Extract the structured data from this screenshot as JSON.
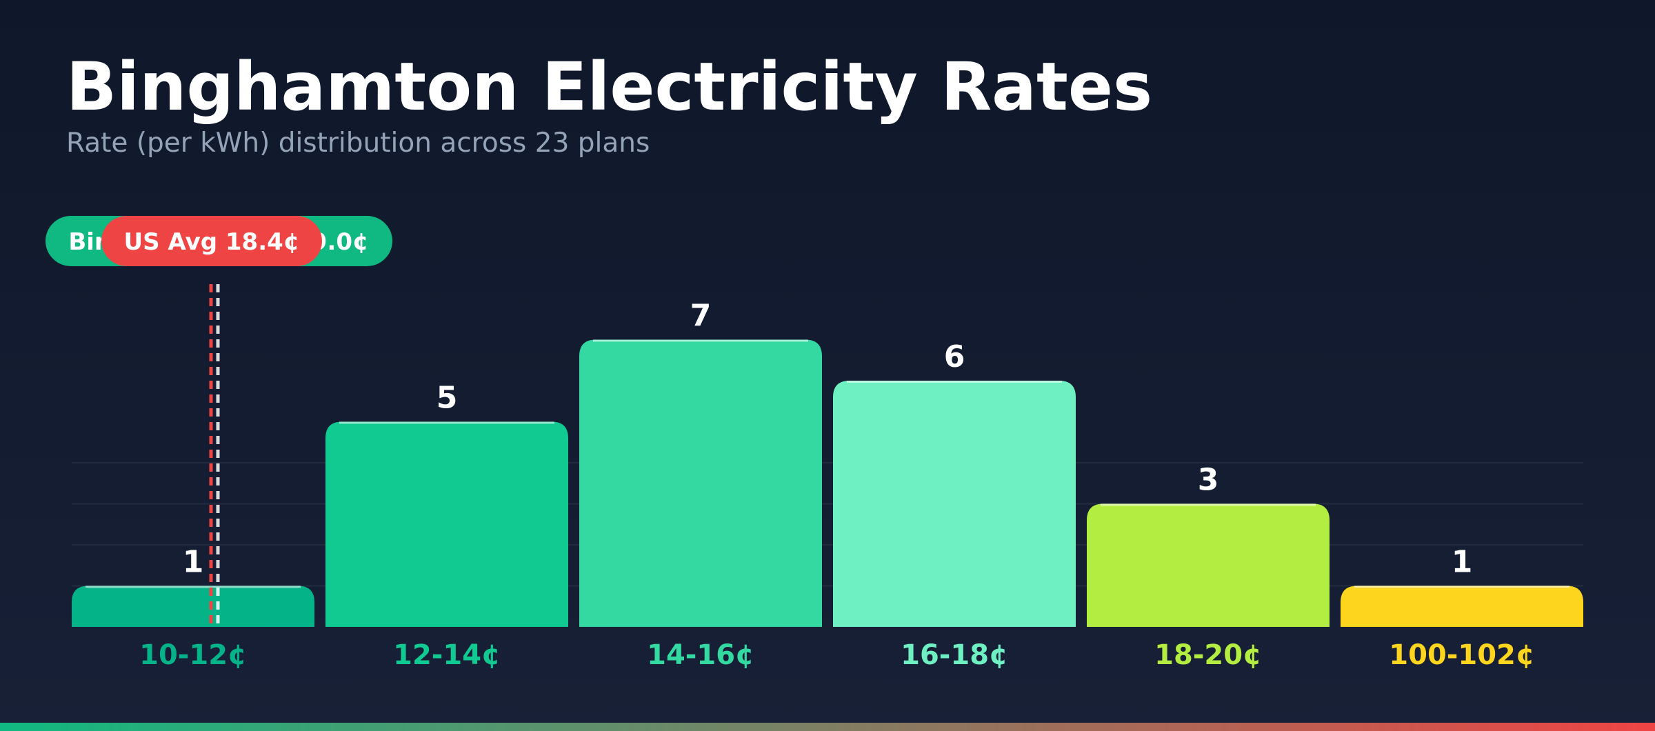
{
  "header": {
    "title": "Binghamton Electricity Rates",
    "subtitle": "Rate (per kWh) distribution across 23 plans"
  },
  "markers": {
    "binghamton": {
      "label": "Binghamton Avg 19.0¢",
      "value": 19.0,
      "color": "#10b981"
    },
    "us_avg": {
      "label": "US Avg 18.4¢",
      "value": 18.4,
      "color": "#ef4444"
    }
  },
  "colors": {
    "bar_colors": [
      "#05b388",
      "#10ca91",
      "#34d9a2",
      "#6ef0c2",
      "#b3ed41",
      "#fdd41e"
    ],
    "bottom_gradient": [
      "#10b981",
      "#ef4444"
    ]
  },
  "chart_data": {
    "type": "bar",
    "title": "Binghamton Electricity Rates",
    "subtitle": "Rate (per kWh) distribution across 23 plans",
    "categories": [
      "10-12¢",
      "12-14¢",
      "14-16¢",
      "16-18¢",
      "18-20¢",
      "100-102¢"
    ],
    "values": [
      1,
      5,
      7,
      6,
      3,
      1
    ],
    "ylim": [
      0,
      7.5
    ],
    "grid": true,
    "grid_values": [
      1,
      2,
      3,
      4
    ]
  }
}
